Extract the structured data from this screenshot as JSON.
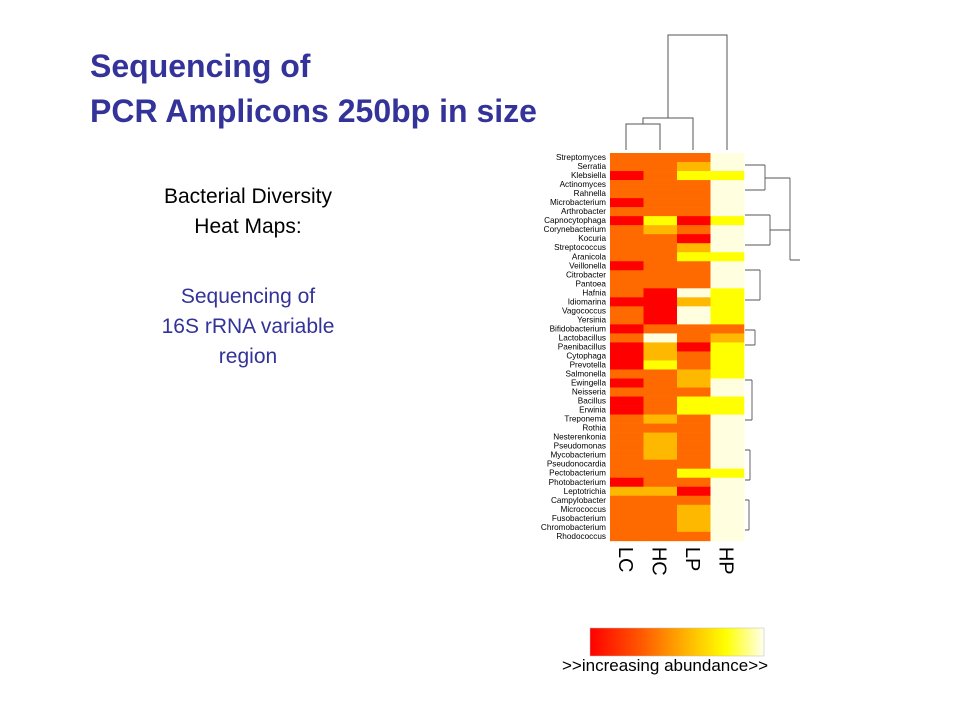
{
  "title_line1": "Sequencing of",
  "title_line2": "PCR Amplicons 250bp in size",
  "subtitle_line1": "Bacterial Diversity",
  "subtitle_line2": "Heat Maps:",
  "note_line1": "Sequencing of",
  "note_line2": "16S rRNA variable",
  "note_line3": "region",
  "legend_caption": ">>increasing abundance>>",
  "chart_data": {
    "type": "heatmap",
    "value_meaning": "relative abundance level, 1 = lowest (red) to 5 = highest (pale yellow/white) as per color key",
    "color_scale": [
      "#ff0000",
      "#ff6a00",
      "#ffb800",
      "#ffff00",
      "#ffffe0"
    ],
    "columns": [
      "LC",
      "HC",
      "LP",
      "HP"
    ],
    "rows": [
      "Streptomyces",
      "Serratia",
      "Klebsiella",
      "Actinomyces",
      "Rahnella",
      "Microbacterium",
      "Arthrobacter",
      "Capnocytophaga",
      "Corynebacterium",
      "Kocuria",
      "Streptococcus",
      "Aranicola",
      "Veillonella",
      "Citrobacter",
      "Pantoea",
      "Hafnia",
      "Idiomarina",
      "Vagococcus",
      "Yersinia",
      "Bifidobacterium",
      "Lactobacillus",
      "Paenibacillus",
      "Cytophaga",
      "Prevotella",
      "Salmonella",
      "Ewingella",
      "Neisseria",
      "Bacillus",
      "Erwinia",
      "Treponema",
      "Rothia",
      "Nesterenkonia",
      "Pseudomonas",
      "Mycobacterium",
      "Pseudonocardia",
      "Pectobacterium",
      "Photobacterium",
      "Leptotrichia",
      "Campylobacter",
      "Micrococcus",
      "Fusobacterium",
      "Chromobacterium",
      "Rhodococcus"
    ],
    "values": [
      [
        2,
        2,
        2,
        5
      ],
      [
        2,
        2,
        3,
        5
      ],
      [
        1,
        2,
        4,
        4
      ],
      [
        2,
        2,
        2,
        5
      ],
      [
        2,
        2,
        2,
        5
      ],
      [
        1,
        2,
        2,
        5
      ],
      [
        2,
        2,
        2,
        5
      ],
      [
        1,
        4,
        1,
        4
      ],
      [
        2,
        3,
        2,
        5
      ],
      [
        2,
        2,
        1,
        5
      ],
      [
        2,
        2,
        3,
        5
      ],
      [
        2,
        2,
        4,
        4
      ],
      [
        1,
        2,
        2,
        5
      ],
      [
        2,
        2,
        2,
        5
      ],
      [
        2,
        2,
        2,
        5
      ],
      [
        2,
        1,
        5,
        4
      ],
      [
        1,
        1,
        3,
        4
      ],
      [
        2,
        1,
        5,
        4
      ],
      [
        2,
        1,
        5,
        4
      ],
      [
        1,
        2,
        2,
        2
      ],
      [
        2,
        5,
        2,
        3
      ],
      [
        1,
        3,
        1,
        4
      ],
      [
        1,
        3,
        2,
        4
      ],
      [
        1,
        4,
        2,
        4
      ],
      [
        2,
        2,
        3,
        4
      ],
      [
        1,
        2,
        3,
        5
      ],
      [
        2,
        2,
        2,
        5
      ],
      [
        1,
        2,
        4,
        4
      ],
      [
        1,
        2,
        4,
        4
      ],
      [
        2,
        3,
        2,
        5
      ],
      [
        2,
        2,
        2,
        5
      ],
      [
        2,
        3,
        2,
        5
      ],
      [
        2,
        3,
        2,
        5
      ],
      [
        2,
        3,
        2,
        5
      ],
      [
        2,
        2,
        2,
        5
      ],
      [
        2,
        2,
        4,
        4
      ],
      [
        1,
        2,
        2,
        5
      ],
      [
        3,
        3,
        1,
        5
      ],
      [
        2,
        2,
        2,
        5
      ],
      [
        2,
        2,
        3,
        5
      ],
      [
        2,
        2,
        3,
        5
      ],
      [
        2,
        2,
        3,
        5
      ],
      [
        2,
        2,
        2,
        5
      ]
    ]
  }
}
